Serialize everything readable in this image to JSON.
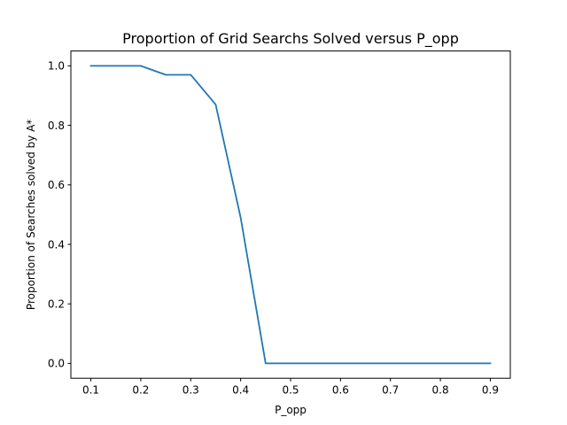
{
  "chart_data": {
    "type": "line",
    "title": "Proportion of Grid Searchs Solved versus P_opp",
    "xlabel": "P_opp",
    "ylabel": "Proportion of Searches solved by A*",
    "xlim": [
      0.06,
      0.94
    ],
    "ylim": [
      -0.05,
      1.05
    ],
    "xticks": [
      0.1,
      0.2,
      0.3,
      0.4,
      0.5,
      0.6,
      0.7,
      0.8,
      0.9
    ],
    "xtick_labels": [
      "0.1",
      "0.2",
      "0.3",
      "0.4",
      "0.5",
      "0.6",
      "0.7",
      "0.8",
      "0.9"
    ],
    "yticks": [
      0.0,
      0.2,
      0.4,
      0.6,
      0.8,
      1.0
    ],
    "ytick_labels": [
      "0.0",
      "0.2",
      "0.4",
      "0.6",
      "0.8",
      "1.0"
    ],
    "grid": false,
    "series": [
      {
        "color": "#1f77b4",
        "x": [
          0.1,
          0.15,
          0.2,
          0.25,
          0.3,
          0.35,
          0.4,
          0.45,
          0.5,
          0.55,
          0.6,
          0.65,
          0.7,
          0.75,
          0.8,
          0.85,
          0.9
        ],
        "y": [
          1.0,
          1.0,
          1.0,
          0.97,
          0.97,
          0.87,
          0.49,
          0.0,
          0.0,
          0.0,
          0.0,
          0.0,
          0.0,
          0.0,
          0.0,
          0.0,
          0.0
        ]
      }
    ]
  }
}
